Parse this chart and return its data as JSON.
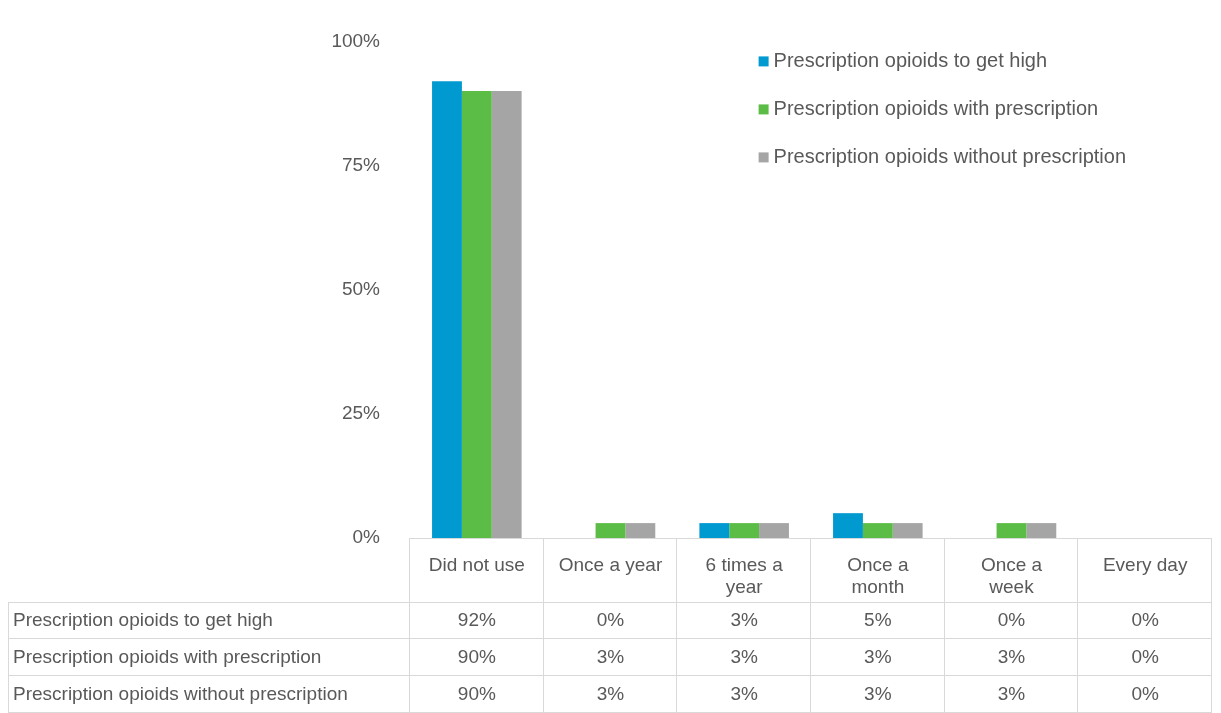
{
  "chart_data": {
    "type": "bar",
    "categories": [
      "Did not use",
      "Once a year",
      "6 times a year",
      "Once a month",
      "Once a week",
      "Every day"
    ],
    "series": [
      {
        "name": "Prescription opioids to get high",
        "color": "#0099d0",
        "values": [
          92,
          0,
          3,
          5,
          0,
          0
        ],
        "value_labels": [
          "92%",
          "0%",
          "3%",
          "5%",
          "0%",
          "0%"
        ]
      },
      {
        "name": "Prescription opioids with prescription",
        "color": "#5bbd45",
        "values": [
          90,
          3,
          3,
          3,
          3,
          0
        ],
        "value_labels": [
          "90%",
          "3%",
          "3%",
          "3%",
          "3%",
          "0%"
        ]
      },
      {
        "name": "Prescription opioids without prescription",
        "color": "#a5a5a5",
        "values": [
          90,
          3,
          3,
          3,
          3,
          0
        ],
        "value_labels": [
          "90%",
          "3%",
          "3%",
          "3%",
          "3%",
          "0%"
        ]
      }
    ],
    "ylim": [
      0,
      100
    ],
    "yticks": [
      {
        "value": 0,
        "label": "0%"
      },
      {
        "value": 25,
        "label": "25%"
      },
      {
        "value": 50,
        "label": "50%"
      },
      {
        "value": 75,
        "label": "75%"
      },
      {
        "value": 100,
        "label": "100%"
      }
    ],
    "grid": false,
    "legend": "top right"
  }
}
